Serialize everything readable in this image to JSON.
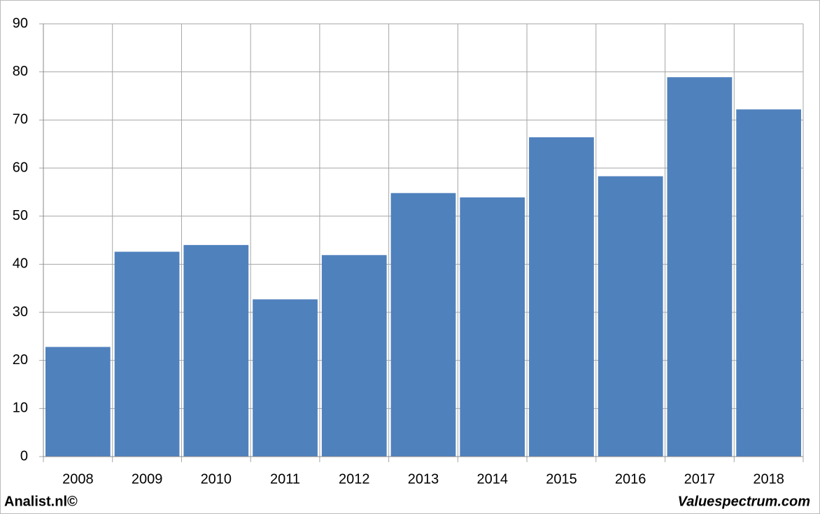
{
  "chart_data": {
    "type": "bar",
    "categories": [
      "2008",
      "2009",
      "2010",
      "2011",
      "2012",
      "2013",
      "2014",
      "2015",
      "2016",
      "2017",
      "2018"
    ],
    "values": [
      22.8,
      42.6,
      44.0,
      32.7,
      41.9,
      54.8,
      53.9,
      66.4,
      58.3,
      78.9,
      72.2
    ],
    "color": "#4f81bd",
    "ylim": [
      0,
      90
    ],
    "yticks": [
      0,
      10,
      20,
      30,
      40,
      50,
      60,
      70,
      80,
      90
    ],
    "grid": true,
    "credits": [
      "Analist.nl©",
      "Valuespectrum.com"
    ]
  }
}
